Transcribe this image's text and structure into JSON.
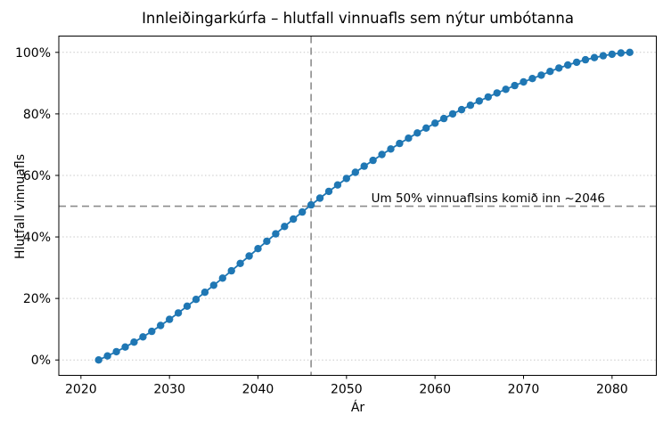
{
  "figure": {
    "title": "Innleiðingarkúrfa – hlutfall vinnuafls sem nýtur umbótanna"
  },
  "chart_data": {
    "type": "line",
    "title": "Innleiðingarkúrfa – hlutfall vinnuafls sem nýtur umbótanna",
    "xlabel": "Ár",
    "ylabel": "Hlutfall vinnuafls",
    "series_name": "Hlutfall vinnuafls sem nýtur umbótanna",
    "x": [
      2022,
      2023,
      2024,
      2025,
      2026,
      2027,
      2028,
      2029,
      2030,
      2031,
      2032,
      2033,
      2034,
      2035,
      2036,
      2037,
      2038,
      2039,
      2040,
      2041,
      2042,
      2043,
      2044,
      2045,
      2046,
      2047,
      2048,
      2049,
      2050,
      2051,
      2052,
      2053,
      2054,
      2055,
      2056,
      2057,
      2058,
      2059,
      2060,
      2061,
      2062,
      2063,
      2064,
      2065,
      2066,
      2067,
      2068,
      2069,
      2070,
      2071,
      2072,
      2073,
      2074,
      2075,
      2076,
      2077,
      2078,
      2079,
      2080,
      2081,
      2082
    ],
    "values": [
      0.0,
      1.3,
      2.7,
      4.2,
      5.8,
      7.5,
      9.3,
      11.2,
      13.2,
      15.3,
      17.5,
      19.7,
      22.0,
      24.3,
      26.6,
      29.0,
      31.4,
      33.8,
      36.2,
      38.6,
      41.0,
      43.4,
      45.8,
      48.1,
      50.4,
      52.6,
      54.8,
      56.9,
      59.0,
      61.0,
      63.0,
      64.9,
      66.8,
      68.6,
      70.4,
      72.1,
      73.8,
      75.4,
      77.0,
      78.5,
      80.0,
      81.4,
      82.8,
      84.2,
      85.5,
      86.8,
      88.0,
      89.2,
      90.4,
      91.5,
      92.6,
      93.8,
      94.9,
      95.9,
      96.8,
      97.6,
      98.3,
      98.9,
      99.4,
      99.8,
      100.0
    ],
    "xlim": [
      2017.5,
      2085
    ],
    "ylim": [
      -5,
      105.3
    ],
    "xticks": [
      2020,
      2030,
      2040,
      2050,
      2060,
      2070,
      2080
    ],
    "xtick_labels": [
      "2020",
      "2030",
      "2040",
      "2050",
      "2060",
      "2070",
      "2080"
    ],
    "yticks": [
      0,
      20,
      40,
      60,
      80,
      100
    ],
    "ytick_labels": [
      "0%",
      "20%",
      "40%",
      "60%",
      "80%",
      "100%"
    ],
    "grid": "horizontal-dotted",
    "legend": "none",
    "marker": "circle",
    "line_color": "#1f77b4",
    "grid_color": "#c9c9c9",
    "reference_line_color": "#8c8c8c",
    "reference_lines": {
      "h_value": 50,
      "v_value": 2046,
      "style": "dashed"
    },
    "annotation": {
      "text": "Um 50% vinnuaflsins komið inn ~2046",
      "x_year": 2052.8,
      "y_pct": 51.3
    }
  }
}
